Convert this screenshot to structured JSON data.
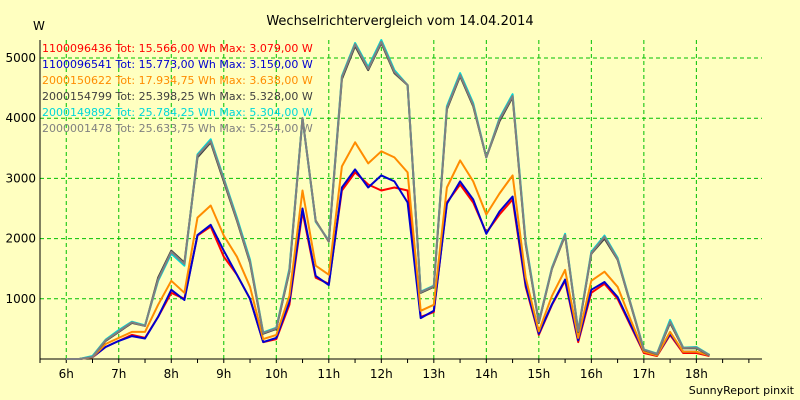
{
  "chart_data": {
    "type": "line",
    "title": "Wechselrichtervergleich vom 14.04.2014",
    "ylabel": "W",
    "credit": "SunnyReport pinxit",
    "ylim": [
      0,
      5300
    ],
    "xlim": [
      5.5,
      19.25
    ],
    "grid": true,
    "legend_position": "top-left",
    "x_tick_values": [
      6,
      7,
      8,
      9,
      10,
      11,
      12,
      13,
      14,
      15,
      16,
      17,
      18
    ],
    "x_tick_labels": [
      "6h",
      "7h",
      "8h",
      "9h",
      "10h",
      "11h",
      "12h",
      "13h",
      "14h",
      "15h",
      "16h",
      "17h",
      "18h"
    ],
    "y_ticks": [
      1000,
      2000,
      3000,
      4000,
      5000
    ],
    "x": [
      6.0,
      6.25,
      6.5,
      6.75,
      7.0,
      7.25,
      7.5,
      7.75,
      8.0,
      8.25,
      8.5,
      8.75,
      9.0,
      9.25,
      9.5,
      9.75,
      10.0,
      10.25,
      10.5,
      10.75,
      11.0,
      11.25,
      11.5,
      11.75,
      12.0,
      12.25,
      12.5,
      12.75,
      13.0,
      13.25,
      13.5,
      13.75,
      14.0,
      14.25,
      14.5,
      14.75,
      15.0,
      15.25,
      15.5,
      15.75,
      16.0,
      16.25,
      16.5,
      16.75,
      17.0,
      17.25,
      17.5,
      17.75,
      18.0,
      18.25
    ],
    "series": [
      {
        "name": "1100096436",
        "legend": "1100096436 Tot: 15.566,00 Wh Max: 3.079,00 W",
        "color": "#ff0000",
        "values": [
          0,
          0,
          30,
          200,
          300,
          400,
          350,
          700,
          1100,
          1000,
          2050,
          2200,
          1700,
          1400,
          1000,
          280,
          330,
          900,
          2450,
          1350,
          1250,
          2800,
          3100,
          2900,
          2800,
          2850,
          2800,
          700,
          780,
          2600,
          2900,
          2600,
          2100,
          2400,
          2650,
          1200,
          400,
          900,
          1300,
          280,
          1100,
          1250,
          1000,
          550,
          100,
          50,
          400,
          100,
          100,
          50
        ]
      },
      {
        "name": "1100096541",
        "legend": "1100096541 Tot: 15.773,00 Wh Max: 3.150,00 W",
        "color": "#0000d0",
        "values": [
          0,
          0,
          30,
          200,
          300,
          380,
          340,
          700,
          1150,
          980,
          2060,
          2230,
          1800,
          1400,
          1000,
          280,
          350,
          950,
          2500,
          1380,
          1230,
          2850,
          3150,
          2850,
          3050,
          2950,
          2600,
          680,
          800,
          2580,
          2950,
          2650,
          2080,
          2450,
          2700,
          1230,
          420,
          910,
          1320,
          310,
          1150,
          1280,
          1030,
          570,
          120,
          60,
          420,
          120,
          120,
          60
        ]
      },
      {
        "name": "2000150622",
        "legend": "2000150622 Tot: 17.934,75 Wh Max: 3.638,00 W",
        "color": "#ff8c00",
        "values": [
          0,
          0,
          30,
          250,
          350,
          450,
          450,
          900,
          1300,
          1100,
          2350,
          2550,
          2050,
          1700,
          1200,
          330,
          400,
          1050,
          2800,
          1550,
          1400,
          3200,
          3600,
          3250,
          3450,
          3350,
          3100,
          800,
          900,
          2850,
          3300,
          2950,
          2400,
          2750,
          3050,
          1350,
          460,
          1050,
          1480,
          350,
          1300,
          1450,
          1200,
          650,
          120,
          60,
          450,
          120,
          120,
          60
        ]
      },
      {
        "name": "2000154799",
        "legend": "2000154799 Tot: 25.398,25 Wh Max: 5.328,00 W",
        "color": "#404040",
        "values": [
          0,
          0,
          40,
          300,
          450,
          600,
          550,
          1350,
          1800,
          1600,
          3350,
          3600,
          2950,
          2300,
          1600,
          420,
          500,
          1450,
          4000,
          2300,
          1950,
          4650,
          5200,
          4800,
          5250,
          4750,
          4550,
          1100,
          1200,
          4150,
          4700,
          4200,
          3350,
          3950,
          4350,
          1900,
          600,
          1500,
          2050,
          450,
          1750,
          2000,
          1650,
          900,
          150,
          80,
          600,
          180,
          180,
          60
        ]
      },
      {
        "name": "2000149892",
        "legend": "2000149892 Tot: 25.784,25 Wh Max: 5.304,00 W",
        "color": "#00d8d8",
        "values": [
          0,
          0,
          50,
          320,
          480,
          620,
          560,
          1300,
          1750,
          1550,
          3400,
          3650,
          3000,
          2350,
          1650,
          440,
          520,
          1500,
          4000,
          2280,
          1970,
          4700,
          5250,
          4850,
          5300,
          4800,
          4550,
          1120,
          1220,
          4200,
          4750,
          4250,
          3350,
          4000,
          4400,
          1950,
          620,
          1520,
          2080,
          470,
          1780,
          2050,
          1680,
          920,
          160,
          90,
          650,
          190,
          200,
          70
        ]
      },
      {
        "name": "2000001478",
        "legend": "2000001478 Tot: 25.633,75 Wh Max: 5.254,00 W",
        "color": "#808080",
        "values": [
          0,
          0,
          35,
          310,
          460,
          610,
          550,
          1320,
          1780,
          1580,
          3380,
          3620,
          2980,
          2320,
          1620,
          430,
          510,
          1470,
          4000,
          2290,
          1960,
          4680,
          5230,
          4820,
          5270,
          4770,
          4550,
          1110,
          1210,
          4170,
          4720,
          4220,
          3350,
          3980,
          4370,
          1920,
          610,
          1510,
          2060,
          460,
          1760,
          2030,
          1660,
          910,
          155,
          85,
          620,
          185,
          190,
          65
        ]
      }
    ]
  }
}
